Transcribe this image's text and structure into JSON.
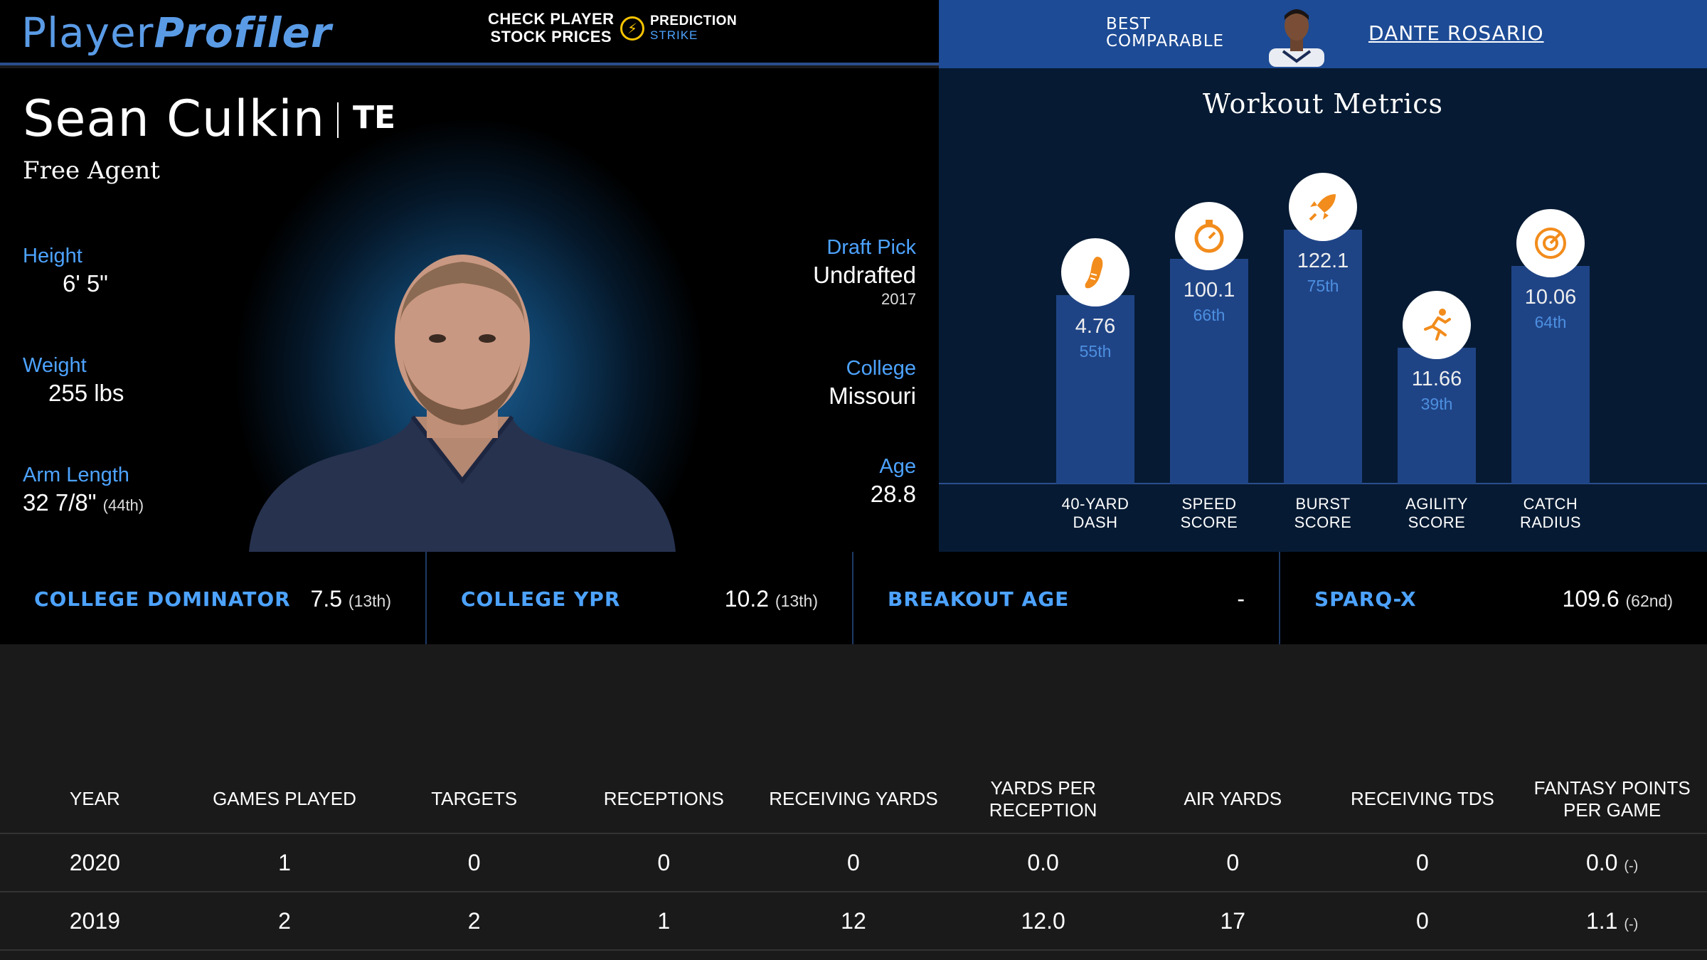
{
  "header": {
    "logo_part1": "Player",
    "logo_part2": "Profiler",
    "stock_line1": "CHECK PLAYER",
    "stock_line2": "STOCK PRICES",
    "partner_line1": "PREDICTION",
    "partner_line2": "STRIKE",
    "best_line1": "BEST",
    "best_line2": "COMPARABLE",
    "comparable_name": "DANTE ROSARIO"
  },
  "player": {
    "name": "Sean Culkin",
    "position": "TE",
    "team": "Free Agent",
    "height_label": "Height",
    "height_value": "6' 5\"",
    "weight_label": "Weight",
    "weight_value": "255 lbs",
    "arm_label": "Arm Length",
    "arm_value": "32 7/8\"",
    "arm_rank": "(44th)",
    "draft_label": "Draft Pick",
    "draft_value": "Undrafted",
    "draft_year": "2017",
    "college_label": "College",
    "college_value": "Missouri",
    "age_label": "Age",
    "age_value": "28.8"
  },
  "workout": {
    "title": "Workout Metrics",
    "metrics": [
      {
        "label1": "40-YARD",
        "label2": "DASH",
        "value": "4.76",
        "pct": "55th",
        "percentile": 55,
        "icon": "running-shoe-icon"
      },
      {
        "label1": "SPEED",
        "label2": "SCORE",
        "value": "100.1",
        "pct": "66th",
        "percentile": 66,
        "icon": "stopwatch-icon"
      },
      {
        "label1": "BURST",
        "label2": "SCORE",
        "value": "122.1",
        "pct": "75th",
        "percentile": 75,
        "icon": "rocket-icon"
      },
      {
        "label1": "AGILITY",
        "label2": "SCORE",
        "value": "11.66",
        "pct": "39th",
        "percentile": 39,
        "icon": "runner-icon"
      },
      {
        "label1": "CATCH",
        "label2": "RADIUS",
        "value": "10.06",
        "pct": "64th",
        "percentile": 64,
        "icon": "target-icon"
      }
    ]
  },
  "college_metrics": [
    {
      "name": "COLLEGE DOMINATOR",
      "value": "7.5",
      "rank": "(13th)"
    },
    {
      "name": "COLLEGE YPR",
      "value": "10.2",
      "rank": "(13th)"
    },
    {
      "name": "BREAKOUT AGE",
      "value": "-",
      "rank": ""
    },
    {
      "name": "SPARQ-X",
      "value": "109.6",
      "rank": "(62nd)"
    }
  ],
  "stats_table": {
    "headers": [
      "YEAR",
      "GAMES PLAYED",
      "TARGETS",
      "RECEPTIONS",
      "RECEIVING YARDS",
      "YARDS PER RECEPTION",
      "AIR YARDS",
      "RECEIVING TDS",
      "FANTASY POINTS PER GAME"
    ],
    "rows": [
      [
        "2020",
        "1",
        "0",
        "0",
        "0",
        "0.0",
        "0",
        "0",
        "0.0"
      ],
      [
        "2019",
        "2",
        "2",
        "1",
        "12",
        "12.0",
        "17",
        "0",
        "1.1"
      ]
    ],
    "fp_rank": [
      "(-)",
      "(-)"
    ]
  },
  "colors": {
    "accent": "#4da3ff",
    "bar": "#1f4486",
    "icon": "#f28c1c",
    "header_blue": "#1d4b95"
  }
}
